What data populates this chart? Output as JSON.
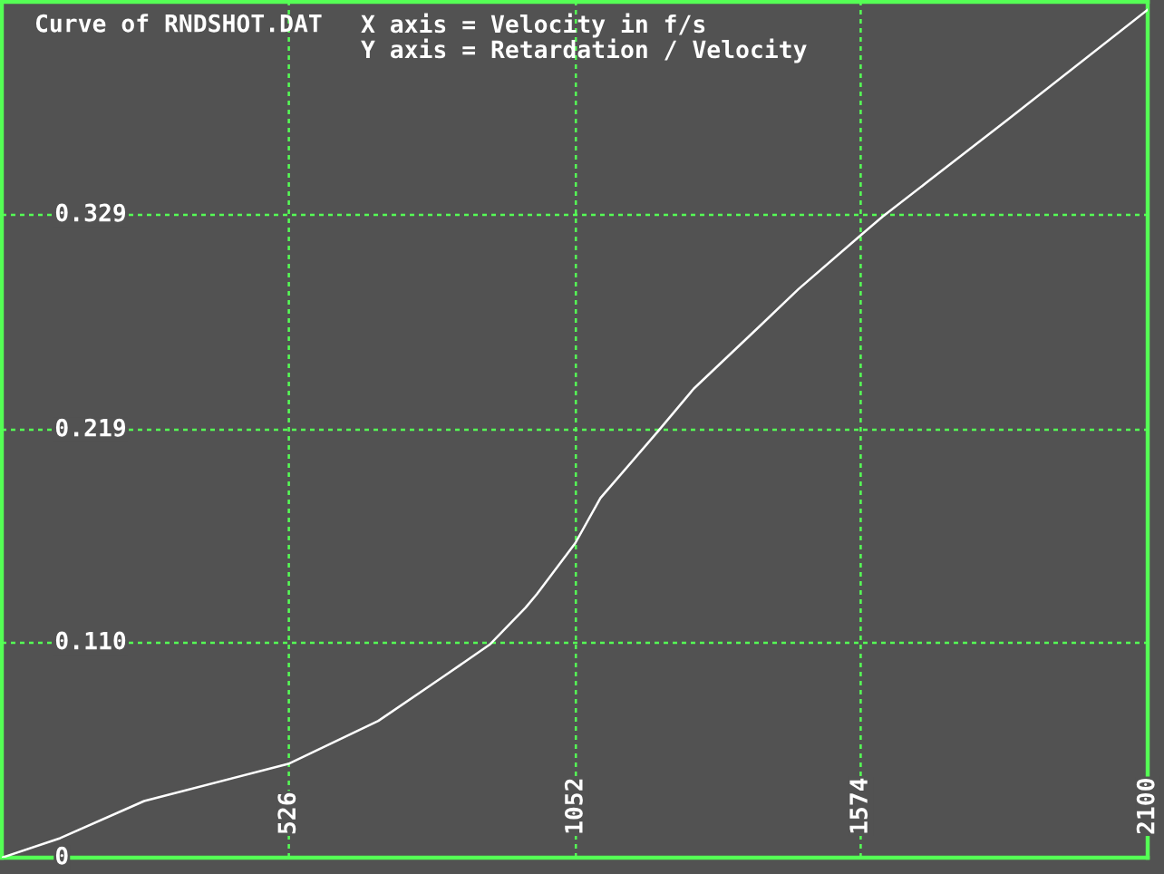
{
  "chart_data": {
    "type": "line",
    "title": "Curve of RNDSHOT.DAT",
    "xlabel": "X axis = Velocity in f/s",
    "ylabel": "Y axis = Retardation / Velocity",
    "x": [
      0,
      107,
      261,
      525,
      690,
      811,
      894,
      960,
      981,
      1051,
      1097,
      1202,
      1268,
      1389,
      1460,
      1576,
      1614,
      1697,
      1845,
      2100
    ],
    "values": [
      0,
      0.01,
      0.029,
      0.048,
      0.07,
      0.093,
      0.109,
      0.128,
      0.135,
      0.161,
      0.184,
      0.218,
      0.24,
      0.272,
      0.291,
      0.319,
      0.328,
      0.346,
      0.378,
      0.434
    ],
    "color": "#ffffff",
    "xlim": [
      0,
      2100
    ],
    "ylim": [
      0,
      0.438
    ],
    "xticks": [
      526,
      1052,
      1574,
      2100
    ],
    "yticks": [
      0,
      {
        "value": 0.11,
        "label": "0.110"
      },
      0.219,
      0.329
    ],
    "grid": true
  }
}
